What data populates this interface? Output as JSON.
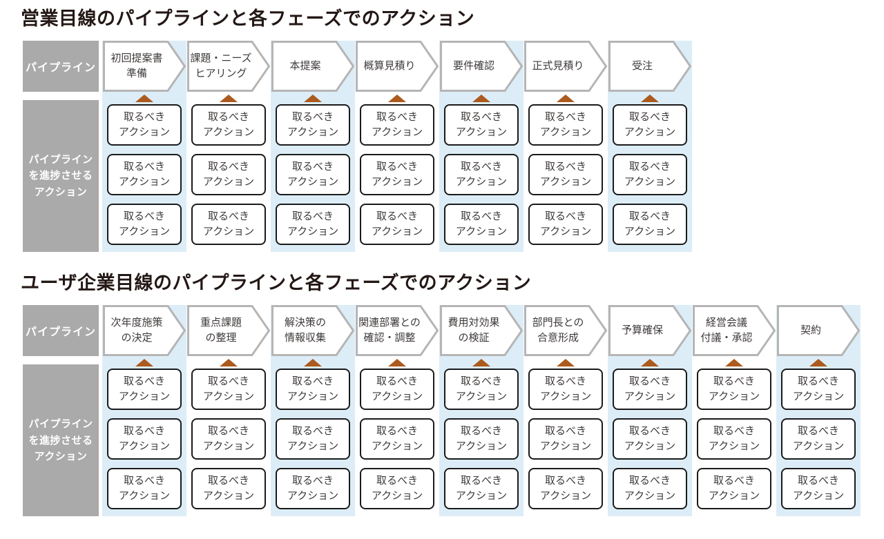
{
  "colors": {
    "title": "#231815",
    "text": "#3e3a39",
    "sidebar_gray": "#aaaaaa",
    "stripe_blue": "#dcedf7",
    "chevron_border": "#b5b5b5",
    "box_border": "#1a1a1a",
    "triangle_orange": "#ac5a1e",
    "background": "#ffffff"
  },
  "common": {
    "action_box_label": "取るべき\nアクション"
  },
  "diagrams": [
    {
      "title": "営業目線のパイプラインと各フェーズでのアクション",
      "sidebar": {
        "pipeline": "パイプライン",
        "actions": "パイプライン\nを進捗させる\nアクション"
      },
      "action_rows_per_phase": 3,
      "phases": [
        "初回提案書\n準備",
        "課題・ニーズ\nヒアリング",
        "本提案",
        "概算見積り",
        "要件確認",
        "正式見積り",
        "受注"
      ]
    },
    {
      "title": "ユーザ企業目線のパイプラインと各フェーズでのアクション",
      "sidebar": {
        "pipeline": "パイプライン",
        "actions": "パイプライン\nを進捗させる\nアクション"
      },
      "action_rows_per_phase": 3,
      "phases": [
        "次年度施策\nの決定",
        "重点課題\nの整理",
        "解決策の\n情報収集",
        "関連部署との\n確認・調整",
        "費用対効果\nの検証",
        "部門長との\n合意形成",
        "予算確保",
        "経営会議\n付議・承認",
        "契約"
      ]
    }
  ]
}
